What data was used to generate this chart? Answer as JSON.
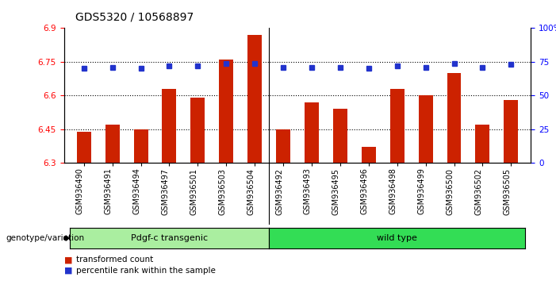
{
  "title": "GDS5320 / 10568897",
  "categories": [
    "GSM936490",
    "GSM936491",
    "GSM936494",
    "GSM936497",
    "GSM936501",
    "GSM936503",
    "GSM936504",
    "GSM936492",
    "GSM936493",
    "GSM936495",
    "GSM936496",
    "GSM936498",
    "GSM936499",
    "GSM936500",
    "GSM936502",
    "GSM936505"
  ],
  "bar_values": [
    6.44,
    6.47,
    6.45,
    6.63,
    6.59,
    6.76,
    6.87,
    6.45,
    6.57,
    6.54,
    6.37,
    6.63,
    6.6,
    6.7,
    6.47,
    6.58
  ],
  "percentile_values": [
    70,
    71,
    70,
    72,
    72,
    74,
    74,
    71,
    71,
    71,
    70,
    72,
    71,
    74,
    71,
    73
  ],
  "bar_color": "#cc2200",
  "percentile_color": "#2233cc",
  "ylim_left": [
    6.3,
    6.9
  ],
  "ylim_right": [
    0,
    100
  ],
  "yticks_left": [
    6.3,
    6.45,
    6.6,
    6.75,
    6.9
  ],
  "yticks_right": [
    0,
    25,
    50,
    75,
    100
  ],
  "ytick_labels_right": [
    "0",
    "25",
    "50",
    "75",
    "100%"
  ],
  "group1_label": "Pdgf-c transgenic",
  "group2_label": "wild type",
  "group1_color": "#aaeea0",
  "group2_color": "#33dd55",
  "group1_count": 7,
  "group2_count": 9,
  "genotype_label": "genotype/variation",
  "legend_bar_label": "transformed count",
  "legend_pct_label": "percentile rank within the sample",
  "title_fontsize": 10,
  "tick_fontsize": 7.5,
  "label_fontsize": 7,
  "bar_bottom": 6.3,
  "xtick_area_color": "#d8d8d8"
}
